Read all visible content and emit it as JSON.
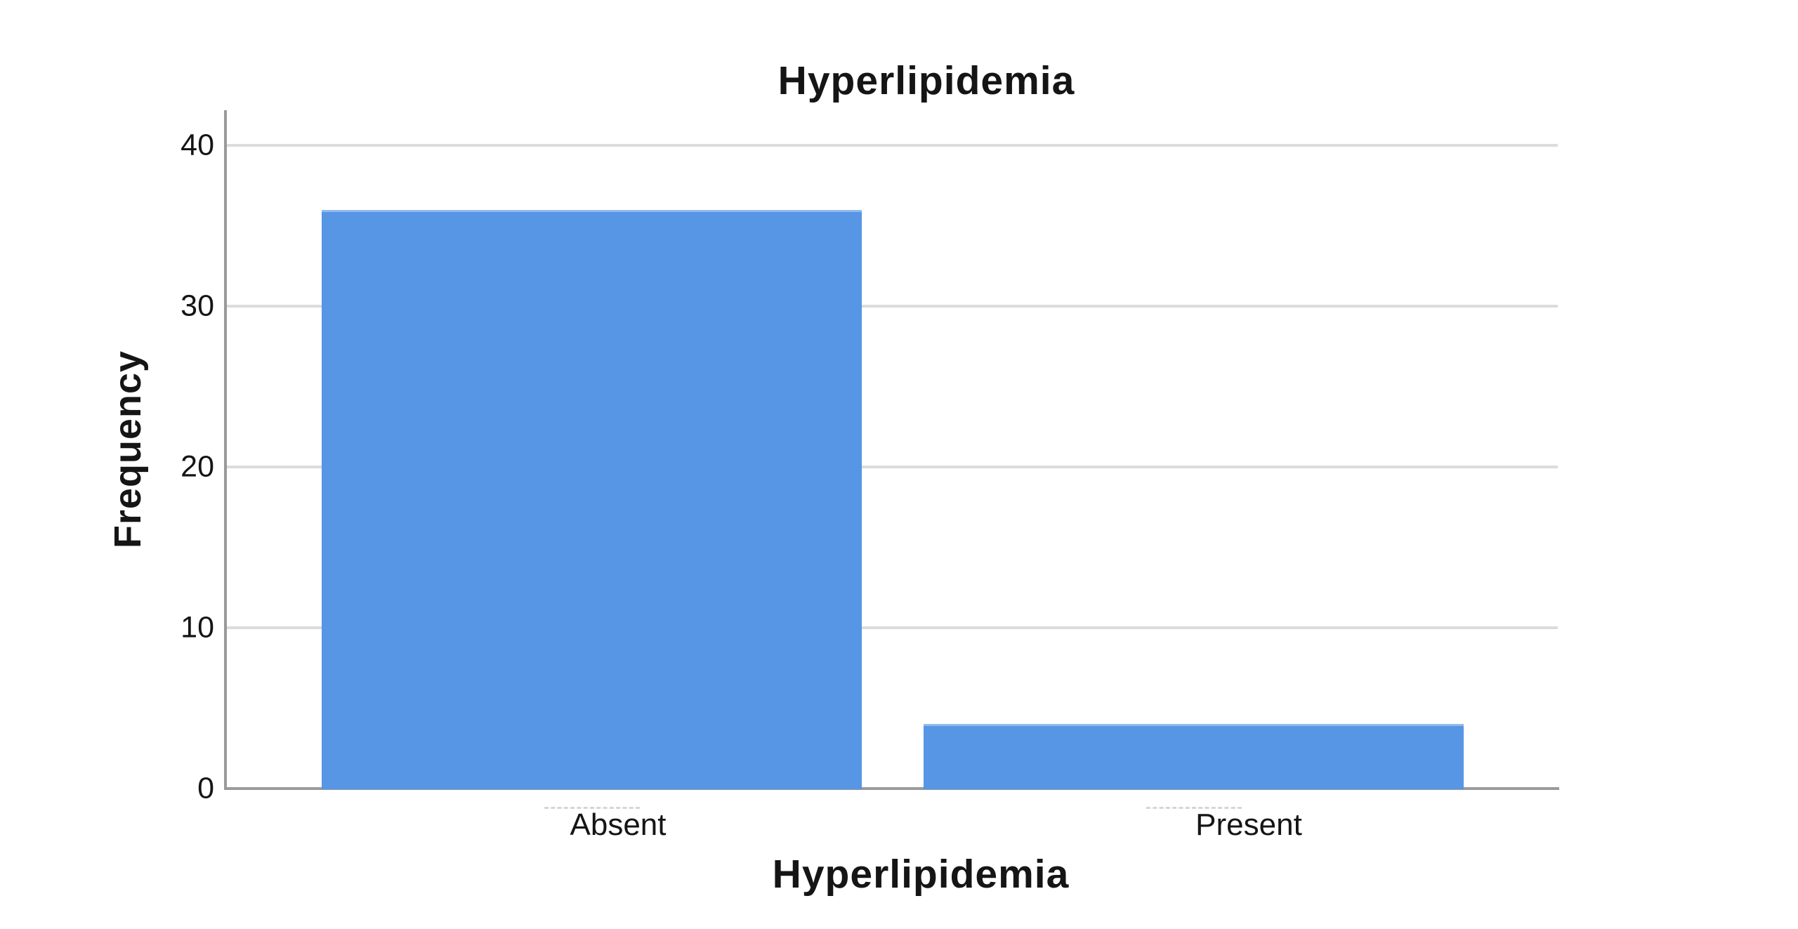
{
  "chart_data": {
    "type": "bar",
    "title": "Hyperlipidemia",
    "xlabel": "Hyperlipidemia",
    "ylabel": "Frequency",
    "categories": [
      "Absent",
      "Present"
    ],
    "values": [
      36,
      4
    ],
    "ylim": [
      0,
      40
    ],
    "yticks": [
      0,
      10,
      20,
      30,
      40
    ],
    "grid": "horizontal-light",
    "legend_position": "none",
    "bar_color": "#5795E5",
    "axis_color": "#9A9A9A",
    "gridline_color": "#DCDCDC",
    "text_color": "#151515",
    "background_color": "#FFFFFF"
  }
}
